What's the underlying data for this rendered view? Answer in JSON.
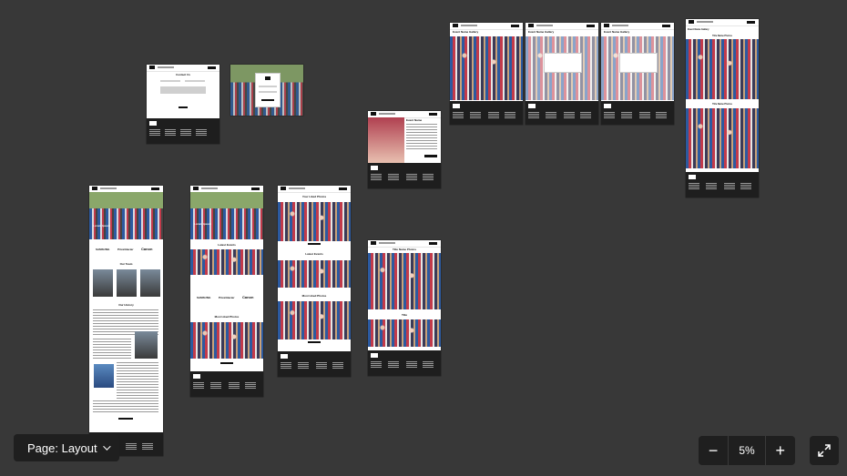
{
  "controls": {
    "page_selector_label": "Page: Layout",
    "zoom_value": "5%",
    "zoom_out_symbol": "−",
    "zoom_in_symbol": "+"
  },
  "frames": {
    "contact": {
      "heading": "Contact Us"
    },
    "home": {
      "hero_title": "Lorem Ipsum",
      "team_heading": "Our Team",
      "history_heading": "Our History",
      "brands": [
        "SAMSUNG",
        "PriceGlacier",
        "Canon"
      ]
    },
    "landing": {
      "hero_title": "Lorem ipsum",
      "latest_events": "Latest Events",
      "liked_photos": "Most Liked Photos",
      "brands": [
        "SAMSUNG",
        "PriceGlacier",
        "Canon"
      ]
    },
    "liked": {
      "heading_1": "Your Liked Photos",
      "heading_2": "Latest Events",
      "heading_3": "Most Liked Photos"
    },
    "event": {
      "heading": "Event Name"
    },
    "title_photos": {
      "heading_1": "Title Name Photos",
      "heading_2": "Title"
    },
    "galleries": {
      "gallery_1": "Event Name Gallery",
      "gallery_2": "Event Name Gallery",
      "gallery_3": "Event Name Gallery",
      "gallery_4": "Event Name Gallery",
      "title_1": "Title Name Photos",
      "title_2": "Title Name Photos"
    }
  },
  "icons": {
    "chevron": "chevron-down-icon",
    "minus": "minus-icon",
    "plus": "plus-icon",
    "expand": "expand-icon"
  }
}
